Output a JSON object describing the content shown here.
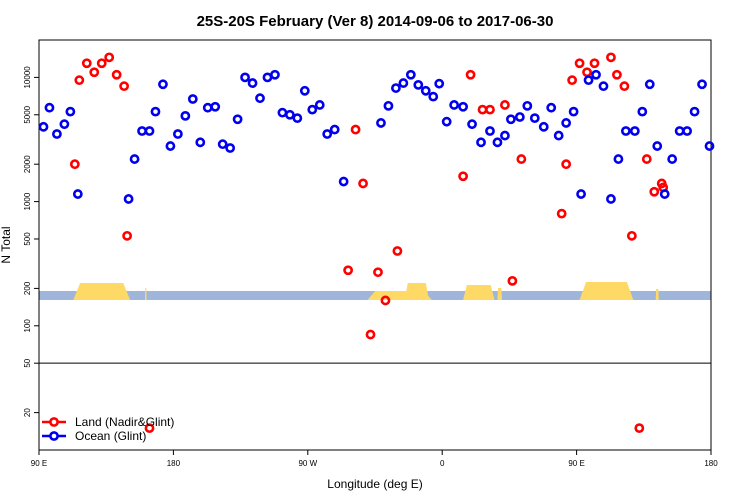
{
  "chart_data": {
    "type": "scatter",
    "title": "25S-20S February (Ver 8)   2014-09-06 to 2017-06-30",
    "xlabel": "Longitude (deg E)",
    "ylabel": "N Total",
    "x_scale": "longitude-wrapped",
    "x_plot_range": [
      90,
      540
    ],
    "y_scale": "log",
    "ylim": [
      10,
      20000
    ],
    "x_ticks": [
      {
        "x": 90,
        "label": "90 E"
      },
      {
        "x": 180,
        "label": "180"
      },
      {
        "x": 270,
        "label": "90 W"
      },
      {
        "x": 360,
        "label": "0"
      },
      {
        "x": 450,
        "label": "90 E"
      },
      {
        "x": 540,
        "label": "180"
      }
    ],
    "y_ticks": [
      {
        "y": 20,
        "label": "20"
      },
      {
        "y": 50,
        "label": "50"
      },
      {
        "y": 100,
        "label": "100"
      },
      {
        "y": 200,
        "label": "200"
      },
      {
        "y": 500,
        "label": "500"
      },
      {
        "y": 1000,
        "label": "1000"
      },
      {
        "y": 2000,
        "label": "2000"
      },
      {
        "y": 5000,
        "label": "5000"
      },
      {
        "y": 10000,
        "label": "10000"
      }
    ],
    "hlines": [
      50
    ],
    "grid": false,
    "legend_position": "bottom-left",
    "colors": {
      "land": "#ff0000",
      "ocean": "#0000ee",
      "land_mask": "#ffd966",
      "ocean_mask": "#9fb6da"
    },
    "series": [
      {
        "name": "Land (Nadir&Glint)",
        "color": "#ff0000",
        "x": [
          114,
          117,
          122,
          127,
          132,
          137,
          142,
          147,
          149,
          164,
          297,
          302,
          307,
          312,
          317,
          322,
          330,
          374,
          379,
          387,
          392,
          402,
          407,
          413,
          440,
          443,
          447,
          452,
          457,
          462,
          473,
          477,
          482,
          487,
          492,
          497,
          502,
          507,
          508
        ],
        "y": [
          2000,
          9500,
          13000,
          11000,
          13000,
          14500,
          10500,
          8500,
          530,
          15,
          280,
          3800,
          1400,
          85,
          270,
          160,
          400,
          1600,
          10500,
          5500,
          5500,
          6000,
          230,
          2200,
          800,
          2000,
          9500,
          13000,
          11000,
          13000,
          14500,
          10500,
          8500,
          530,
          15,
          2200,
          1200,
          1400,
          1300
        ]
      },
      {
        "name": "Ocean (Glint)",
        "color": "#0000ee",
        "x": [
          93,
          97,
          102,
          107,
          111,
          116,
          150,
          154,
          159,
          164,
          168,
          173,
          178,
          183,
          188,
          193,
          198,
          203,
          208,
          213,
          218,
          223,
          228,
          233,
          238,
          243,
          248,
          253,
          258,
          263,
          268,
          273,
          278,
          283,
          288,
          294,
          319,
          324,
          329,
          334,
          339,
          344,
          349,
          354,
          358,
          363,
          368,
          374,
          380,
          386,
          392,
          397,
          402,
          406,
          412,
          417,
          422,
          428,
          433,
          438,
          443,
          448,
          453,
          458,
          463,
          468,
          473,
          478,
          483,
          489,
          494,
          499,
          504,
          509,
          514,
          519,
          524,
          529,
          534,
          539
        ],
        "y": [
          4000,
          5700,
          3500,
          4200,
          5300,
          1150,
          1050,
          2200,
          3700,
          3700,
          5300,
          8800,
          2800,
          3500,
          4900,
          6700,
          3000,
          5700,
          5800,
          2900,
          2700,
          4600,
          10000,
          9000,
          6800,
          10000,
          10500,
          5200,
          5000,
          4700,
          7800,
          5500,
          6000,
          3500,
          3800,
          1450,
          4300,
          5900,
          8200,
          9000,
          10500,
          8700,
          7800,
          7000,
          8900,
          4400,
          6000,
          5800,
          4200,
          3000,
          3700,
          3000,
          3400,
          4600,
          4800,
          5900,
          4700,
          4000,
          5700,
          3400,
          4300,
          5300,
          1150,
          9500,
          10500,
          8500,
          1050,
          2200,
          3700,
          3700,
          5300,
          8800,
          2800,
          1150,
          2200,
          3700,
          3700,
          5300,
          8800,
          2800
        ]
      }
    ]
  }
}
